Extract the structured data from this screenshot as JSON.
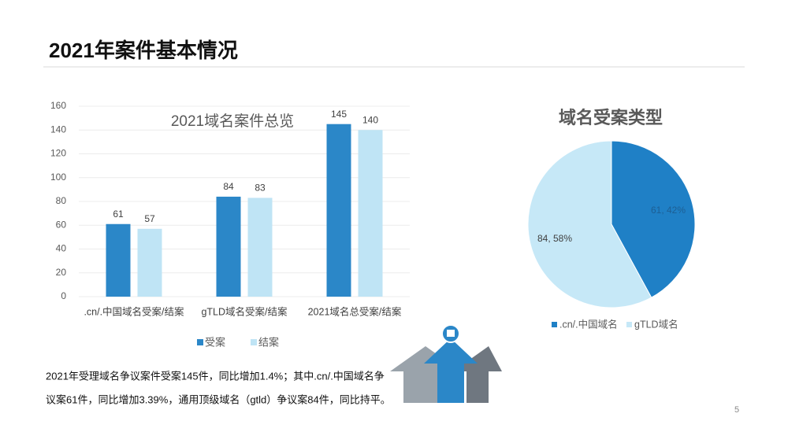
{
  "title": "2021年案件基本情况",
  "chart_data": [
    {
      "type": "bar",
      "title": "2021域名案件总览",
      "categories": [
        ".cn/.中国域名受案/结案",
        "gTLD域名受案/结案",
        "2021域名总受案/结案"
      ],
      "series": [
        {
          "name": "受案",
          "color": "#2b87c8",
          "values": [
            61,
            84,
            145
          ]
        },
        {
          "name": "结案",
          "color": "#bfe4f5",
          "values": [
            57,
            83,
            140
          ]
        }
      ],
      "ylim": [
        0,
        160
      ],
      "yticks": [
        0,
        20,
        40,
        60,
        80,
        100,
        120,
        140,
        160
      ],
      "grid": true,
      "legend": "bottom"
    },
    {
      "type": "pie",
      "title": "域名受案类型",
      "categories": [
        ".cn/.中国域名",
        "gTLD域名"
      ],
      "values": [
        61,
        84
      ],
      "value_labels": [
        "61, 42%",
        "84, 58%"
      ],
      "colors": [
        "#1f80c6",
        "#c6e8f7"
      ],
      "legend": "bottom"
    }
  ],
  "text": [
    "2021年受理域名争议案件受案145件，同比增加1.4%；其中.cn/.中国域名争",
    "议案61件，同比增加3.39%，通用顶级域名（gtld）争议案84件，同比持平。"
  ],
  "page_number": "5"
}
